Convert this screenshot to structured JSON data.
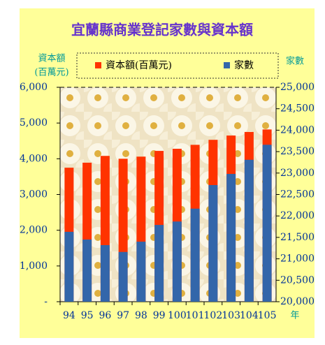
{
  "chart_data": {
    "type": "bar",
    "title": "宜蘭縣商業登記家數與資本額",
    "y_label": [
      "資本額",
      "(百萬元)"
    ],
    "y2_label": "家數",
    "x_label": "年",
    "categories": [
      "94",
      "95",
      "96",
      "97",
      "98",
      "99",
      "100",
      "101",
      "102",
      "103",
      "104",
      "105"
    ],
    "series": [
      {
        "name": "資本額(百萬元)",
        "color": "#ff3300",
        "values": [
          3750,
          3890,
          4080,
          4000,
          4060,
          4220,
          4280,
          4390,
          4530,
          4650,
          4750,
          4820
        ]
      },
      {
        "name": "家數",
        "color": "#3366aa",
        "axis": "y2",
        "values": [
          21630,
          21450,
          21320,
          21160,
          21400,
          21790,
          21870,
          22170,
          22720,
          22980,
          23310,
          23660
        ]
      }
    ],
    "ylim": [
      0,
      6000
    ],
    "yticks": [
      {
        "value": 0,
        "label": "-"
      },
      {
        "value": 1000,
        "label": "1,000"
      },
      {
        "value": 2000,
        "label": "2,000"
      },
      {
        "value": 3000,
        "label": "3,000"
      },
      {
        "value": 4000,
        "label": "4,000"
      },
      {
        "value": 5000,
        "label": "5,000"
      },
      {
        "value": 6000,
        "label": "6,000"
      }
    ],
    "y2lim": [
      20000,
      25000
    ],
    "y2ticks": [
      {
        "value": 20000,
        "label": "20,000"
      },
      {
        "value": 20500,
        "label": "20,500"
      },
      {
        "value": 21000,
        "label": "21,000"
      },
      {
        "value": 21500,
        "label": "21,500"
      },
      {
        "value": 22000,
        "label": "22,000"
      },
      {
        "value": 22500,
        "label": "22,500"
      },
      {
        "value": 23000,
        "label": "23,000"
      },
      {
        "value": 23500,
        "label": "23,500"
      },
      {
        "value": 24000,
        "label": "24,000"
      },
      {
        "value": 24500,
        "label": "24,500"
      },
      {
        "value": 25000,
        "label": "25,000"
      }
    ]
  }
}
